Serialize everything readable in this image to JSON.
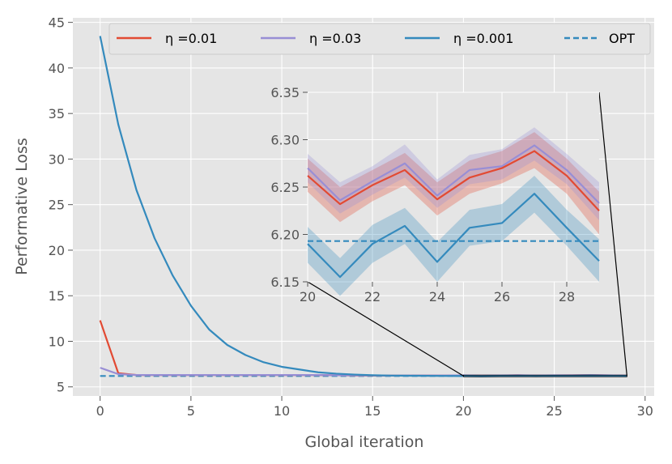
{
  "chart_data": {
    "type": "line",
    "title": "",
    "xlabel": "Global iteration",
    "ylabel": "Performative Loss",
    "xlim": [
      -1.5,
      30.5
    ],
    "ylim": [
      4.0,
      45.5
    ],
    "xticks": [
      0,
      5,
      10,
      15,
      20,
      25,
      30
    ],
    "yticks": [
      5,
      10,
      15,
      20,
      25,
      30,
      35,
      40,
      45
    ],
    "grid": true,
    "legend_position": "top",
    "x": [
      0,
      1,
      2,
      3,
      4,
      5,
      6,
      7,
      8,
      9,
      10,
      11,
      12,
      13,
      14,
      15,
      16,
      17,
      18,
      19,
      20,
      21,
      22,
      23,
      24,
      25,
      26,
      27,
      28,
      29
    ],
    "series": [
      {
        "name": "η =0.01",
        "color": "#E24A33",
        "style": "solid",
        "values": [
          12.3,
          6.5,
          6.3,
          6.3,
          6.3,
          6.3,
          6.3,
          6.3,
          6.3,
          6.3,
          6.3,
          6.3,
          6.3,
          6.27,
          6.25,
          6.24,
          6.23,
          6.24,
          6.25,
          6.24,
          6.26,
          6.23,
          6.25,
          6.27,
          6.237,
          6.26,
          6.27,
          6.288,
          6.262,
          6.225
        ]
      },
      {
        "name": "η =0.03",
        "color": "#988ED5",
        "style": "solid",
        "values": [
          7.1,
          6.4,
          6.3,
          6.3,
          6.3,
          6.3,
          6.3,
          6.3,
          6.3,
          6.3,
          6.3,
          6.3,
          6.3,
          6.28,
          6.26,
          6.25,
          6.24,
          6.25,
          6.25,
          6.25,
          6.265,
          6.235,
          6.255,
          6.274,
          6.241,
          6.268,
          6.272,
          6.294,
          6.268,
          6.233
        ]
      },
      {
        "name": "η =0.001",
        "color": "#348ABD",
        "style": "solid",
        "values": [
          43.5,
          33.8,
          26.6,
          21.3,
          17.2,
          13.9,
          11.3,
          9.6,
          8.5,
          7.7,
          7.2,
          6.9,
          6.6,
          6.45,
          6.35,
          6.28,
          6.24,
          6.22,
          6.21,
          6.2,
          6.19,
          6.155,
          6.19,
          6.209,
          6.171,
          6.207,
          6.212,
          6.243,
          6.207,
          6.172
        ]
      },
      {
        "name": "OPT",
        "color": "#348ABD",
        "style": "dashed",
        "values": [
          6.193,
          6.193,
          6.193,
          6.193,
          6.193,
          6.193,
          6.193,
          6.193,
          6.193,
          6.193,
          6.193,
          6.193,
          6.193,
          6.193,
          6.193,
          6.193,
          6.193,
          6.193,
          6.193,
          6.193,
          6.193,
          6.193,
          6.193,
          6.193,
          6.193,
          6.193,
          6.193,
          6.193,
          6.193,
          6.193
        ]
      }
    ],
    "inset": {
      "xlim": [
        20,
        29
      ],
      "ylim": [
        6.15,
        6.35
      ],
      "xticks": [
        20,
        22,
        24,
        26,
        28
      ],
      "yticks": [
        6.15,
        6.2,
        6.25,
        6.3,
        6.35
      ],
      "ytick_labels": [
        "6.15",
        "6.20",
        "6.25",
        "6.30",
        "6.35"
      ],
      "x": [
        20,
        21,
        22,
        23,
        24,
        25,
        26,
        27,
        28,
        29
      ],
      "series": [
        {
          "name": "η =0.01",
          "color": "#E24A33",
          "values": [
            6.262,
            6.232,
            6.252,
            6.268,
            6.237,
            6.26,
            6.27,
            6.288,
            6.262,
            6.225
          ],
          "lower": [
            6.245,
            6.213,
            6.235,
            6.252,
            6.22,
            6.243,
            6.254,
            6.27,
            6.243,
            6.2
          ],
          "upper": [
            6.28,
            6.25,
            6.268,
            6.286,
            6.255,
            6.278,
            6.288,
            6.308,
            6.28,
            6.245
          ]
        },
        {
          "name": "η =0.03",
          "color": "#988ED5",
          "values": [
            6.27,
            6.236,
            6.256,
            6.275,
            6.241,
            6.268,
            6.272,
            6.294,
            6.268,
            6.233
          ],
          "lower": [
            6.255,
            6.222,
            6.242,
            6.26,
            6.228,
            6.253,
            6.258,
            6.278,
            6.253,
            6.215
          ],
          "upper": [
            6.285,
            6.255,
            6.272,
            6.295,
            6.258,
            6.284,
            6.29,
            6.313,
            6.285,
            6.255
          ]
        },
        {
          "name": "η =0.001",
          "color": "#348ABD",
          "values": [
            6.19,
            6.155,
            6.19,
            6.209,
            6.171,
            6.207,
            6.212,
            6.243,
            6.207,
            6.172
          ],
          "lower": [
            6.17,
            6.135,
            6.17,
            6.19,
            6.15,
            6.188,
            6.193,
            6.223,
            6.188,
            6.15
          ],
          "upper": [
            6.208,
            6.175,
            6.21,
            6.228,
            6.192,
            6.226,
            6.232,
            6.262,
            6.226,
            6.195
          ]
        },
        {
          "name": "OPT",
          "color": "#348ABD",
          "style": "dashed",
          "value": 6.193
        }
      ]
    }
  }
}
